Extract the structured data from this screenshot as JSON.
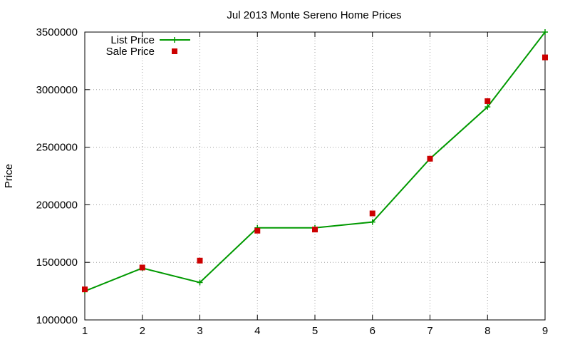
{
  "chart_data": {
    "type": "line",
    "title": "Jul 2013 Monte Sereno Home Prices",
    "xlabel": "",
    "ylabel": "Price",
    "x": [
      1,
      2,
      3,
      4,
      5,
      6,
      7,
      8,
      9
    ],
    "xlim": [
      1,
      9
    ],
    "ylim": [
      1000000,
      3500000
    ],
    "x_ticks": [
      "1",
      "2",
      "3",
      "4",
      "5",
      "6",
      "7",
      "8",
      "9"
    ],
    "y_ticks": [
      "1000000",
      "1500000",
      "2000000",
      "2500000",
      "3000000",
      "3500000"
    ],
    "grid": true,
    "legend_position": "top-left",
    "series": [
      {
        "name": "List Price",
        "style": "line+cross",
        "color": "#009900",
        "values": [
          1250000,
          1450000,
          1325000,
          1800000,
          1800000,
          1850000,
          2400000,
          2850000,
          3500000
        ]
      },
      {
        "name": "Sale Price",
        "style": "square",
        "color": "#cc0000",
        "values": [
          1265000,
          1455000,
          1515000,
          1775000,
          1785000,
          1925000,
          2400000,
          2900000,
          3280000
        ]
      }
    ]
  }
}
